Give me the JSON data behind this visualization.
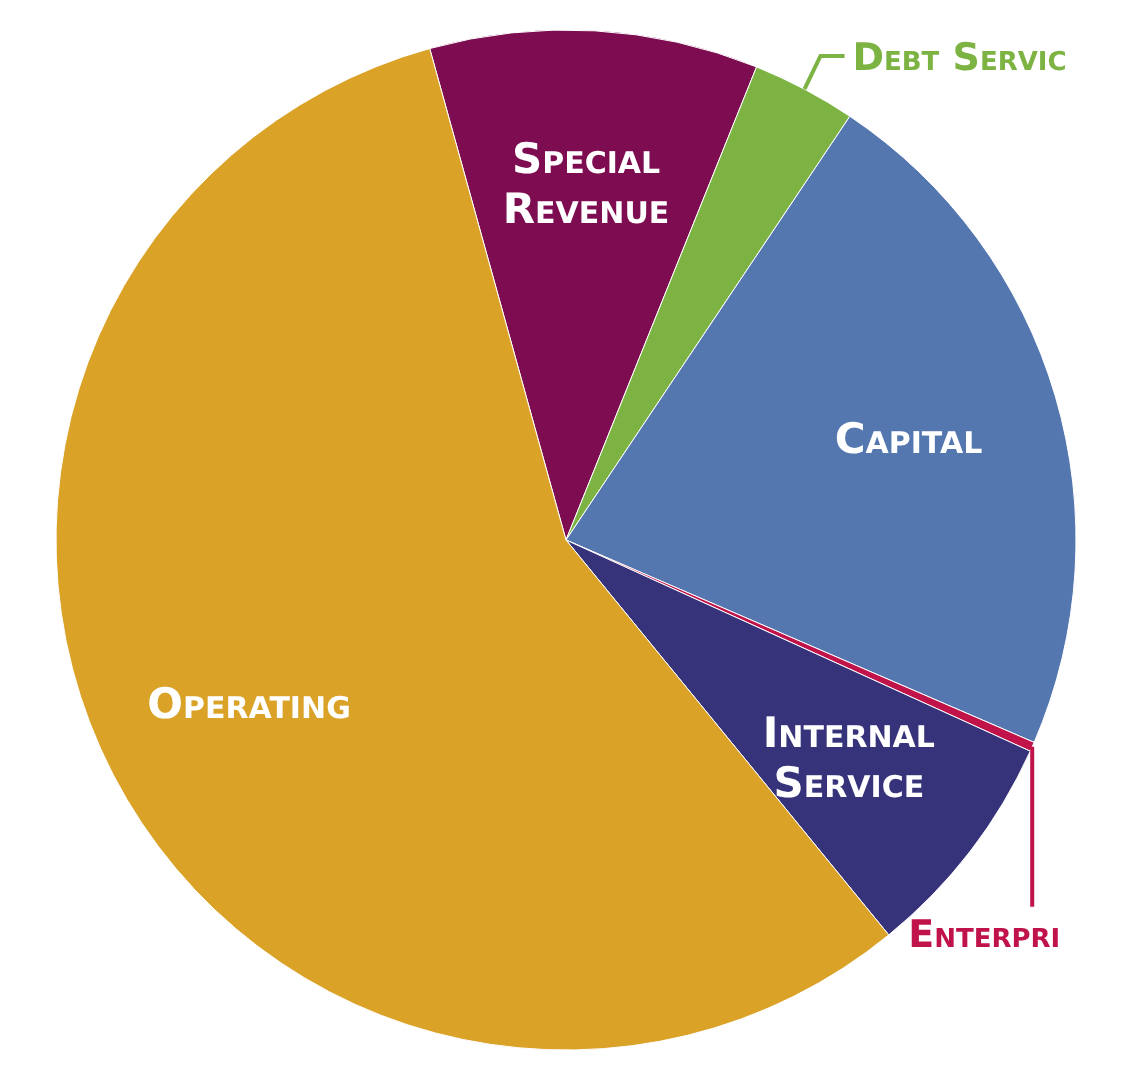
{
  "chart_data": {
    "type": "pie",
    "categories": [
      "Special Revenue",
      "Debt Servic",
      "Capital",
      "Enterpri",
      "Internal Service",
      "Operating"
    ],
    "values": [
      10.4,
      3.3,
      22.1,
      0.3,
      7.3,
      56.6
    ],
    "colors": [
      "#7d0d50",
      "#7cb342",
      "#5577b0",
      "#c0134a",
      "#37337a",
      "#dba228"
    ]
  }
}
